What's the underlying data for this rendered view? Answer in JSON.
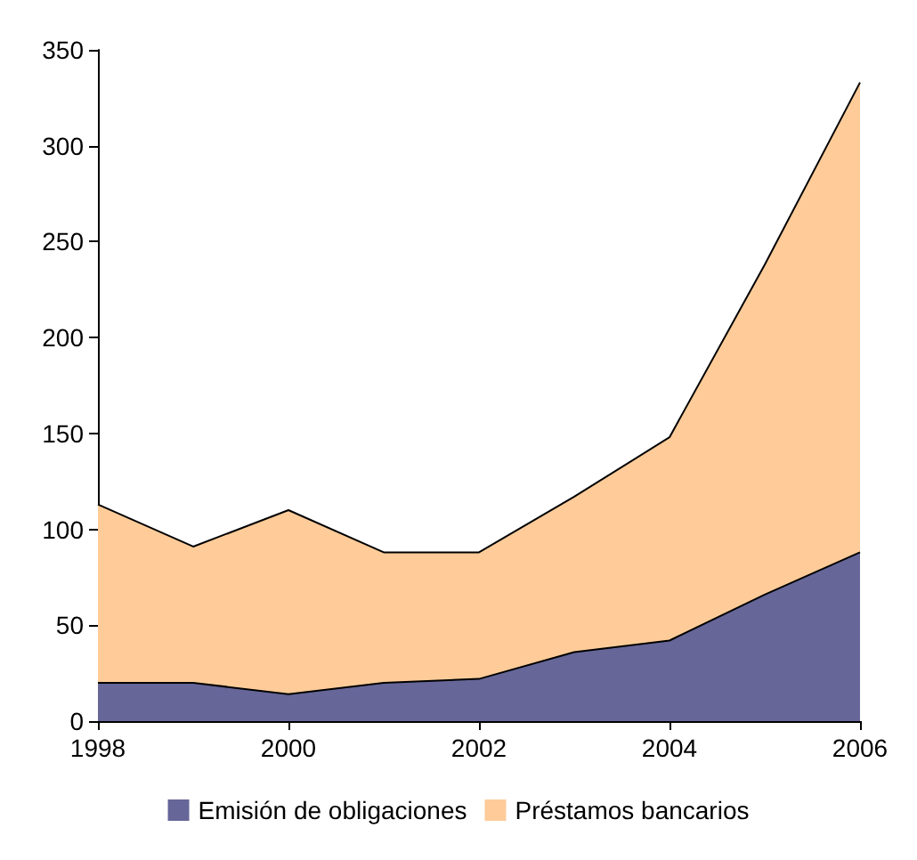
{
  "chart_data": {
    "type": "area",
    "stacked": true,
    "x": [
      1998,
      1999,
      2000,
      2001,
      2002,
      2003,
      2004,
      2005,
      2006
    ],
    "series": [
      {
        "name": "Emisión de obligaciones",
        "color": "#666699",
        "values": [
          20,
          20,
          14,
          20,
          22,
          36,
          42,
          66,
          88
        ]
      },
      {
        "name": "Préstamos bancarios",
        "color": "#ffcc99",
        "values": [
          93,
          71,
          96,
          68,
          66,
          81,
          106,
          172,
          245
        ]
      }
    ],
    "xlim": [
      1998,
      2006
    ],
    "xticks": [
      1998,
      2000,
      2002,
      2004,
      2006
    ],
    "ylim": [
      0,
      350
    ],
    "yticks": [
      0,
      50,
      100,
      150,
      200,
      250,
      300,
      350
    ],
    "grid": false,
    "legend": "bottom",
    "marker": "none"
  }
}
